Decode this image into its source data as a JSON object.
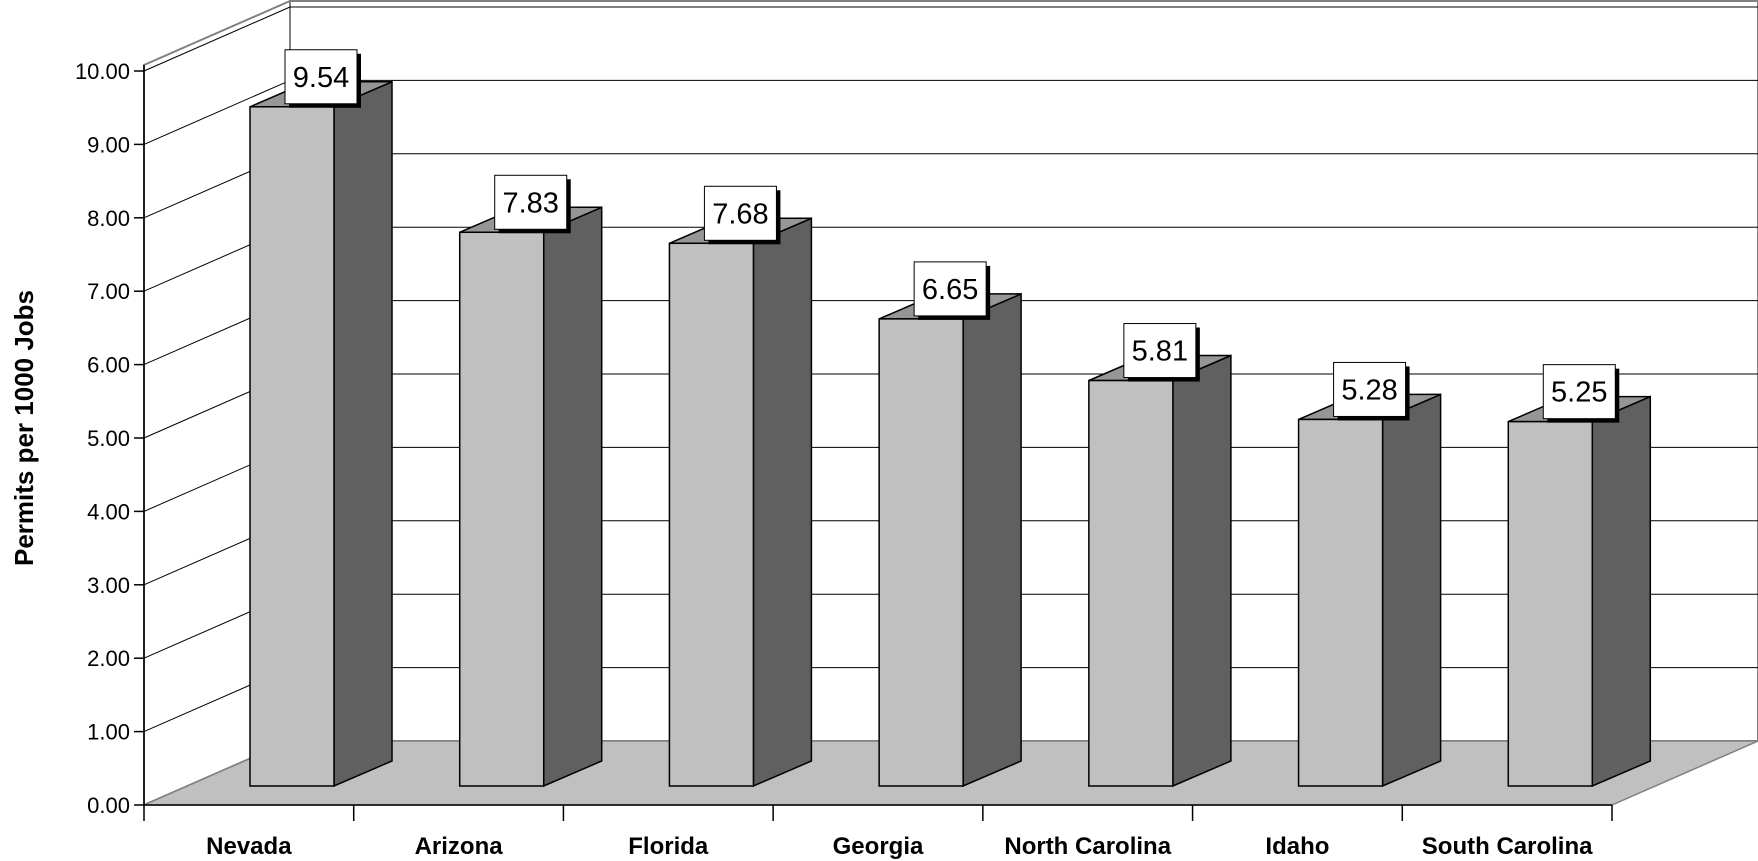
{
  "chart_data": {
    "type": "bar",
    "categories": [
      "Nevada",
      "Arizona",
      "Florida",
      "Georgia",
      "North Carolina",
      "Idaho",
      "South Carolina"
    ],
    "values": [
      9.54,
      7.83,
      7.68,
      6.65,
      5.81,
      5.28,
      5.25
    ],
    "data_labels": [
      "9.54",
      "7.83",
      "7.68",
      "6.65",
      "5.81",
      "5.28",
      "5.25"
    ],
    "ylabel": "Permits per 1000 Jobs",
    "xlabel": "",
    "ylim": [
      0,
      10
    ],
    "y_ticks": [
      "0.00",
      "1.00",
      "2.00",
      "3.00",
      "4.00",
      "5.00",
      "6.00",
      "7.00",
      "8.00",
      "9.00",
      "10.00"
    ],
    "grid": true,
    "legend": "none",
    "style": "3d-column",
    "colors": {
      "bar_front": "#c0c0c0",
      "bar_side": "#606060",
      "bar_top": "#969696",
      "floor": "#c0c0c0",
      "grid": "#000000",
      "background": "#ffffff"
    }
  }
}
